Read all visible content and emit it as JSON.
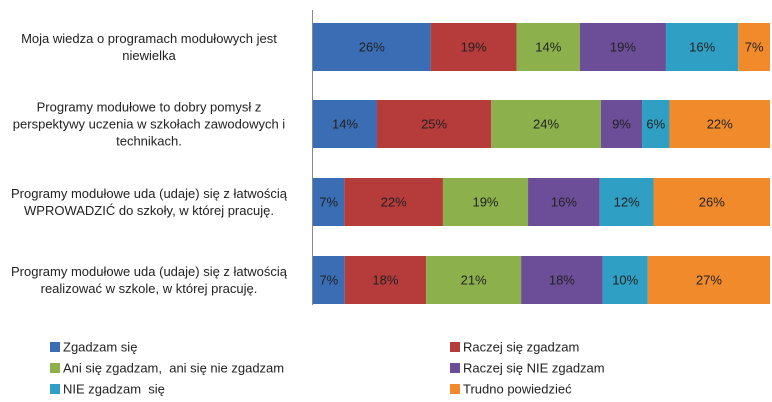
{
  "chart_data": {
    "type": "bar",
    "orientation": "horizontal",
    "stacked": true,
    "categories": [
      "Moja wiedza o programach modułowych jest niewielka",
      "Programy modułowe to dobry pomysł z perspektywy uczenia w szkołach zawodowych i technikach.",
      "Programy modułowe uda (udaje) się z łatwością WPROWADZIĆ do szkoły, w której pracuję.",
      "Programy modułowe uda (udaje) się z łatwością realizować w szkole, w której pracuję."
    ],
    "series": [
      {
        "name": "Zgadzam się",
        "color": "#3a6db4",
        "values": [
          26,
          14,
          7,
          7
        ],
        "value_labels": [
          "26%",
          "14%",
          "7%",
          "7%"
        ]
      },
      {
        "name": "Raczej się zgadzam",
        "color": "#b63b3b",
        "values": [
          19,
          25,
          22,
          18
        ],
        "value_labels": [
          "19%",
          "25%",
          "22%",
          "18%"
        ]
      },
      {
        "name": "Ani się zgadzam,  ani się nie zgadzam",
        "color": "#8cb14c",
        "values": [
          14,
          24,
          19,
          21
        ],
        "value_labels": [
          "14%",
          "24%",
          "19%",
          "21%"
        ]
      },
      {
        "name": "Raczej się NIE zgadzam",
        "color": "#6b4d98",
        "values": [
          19,
          9,
          16,
          18
        ],
        "value_labels": [
          "19%",
          "9%",
          "16%",
          "18%"
        ]
      },
      {
        "name": "NIE zgadzam  się",
        "color": "#2f9fc4",
        "values": [
          16,
          6,
          12,
          10
        ],
        "value_labels": [
          "16%",
          "6%",
          "12%",
          "10%"
        ]
      },
      {
        "name": "Trudno powiedzieć",
        "color": "#f08a2a",
        "values": [
          7,
          22,
          26,
          27
        ],
        "value_labels": [
          "7%",
          "22%",
          "26%",
          "27%"
        ]
      }
    ]
  }
}
